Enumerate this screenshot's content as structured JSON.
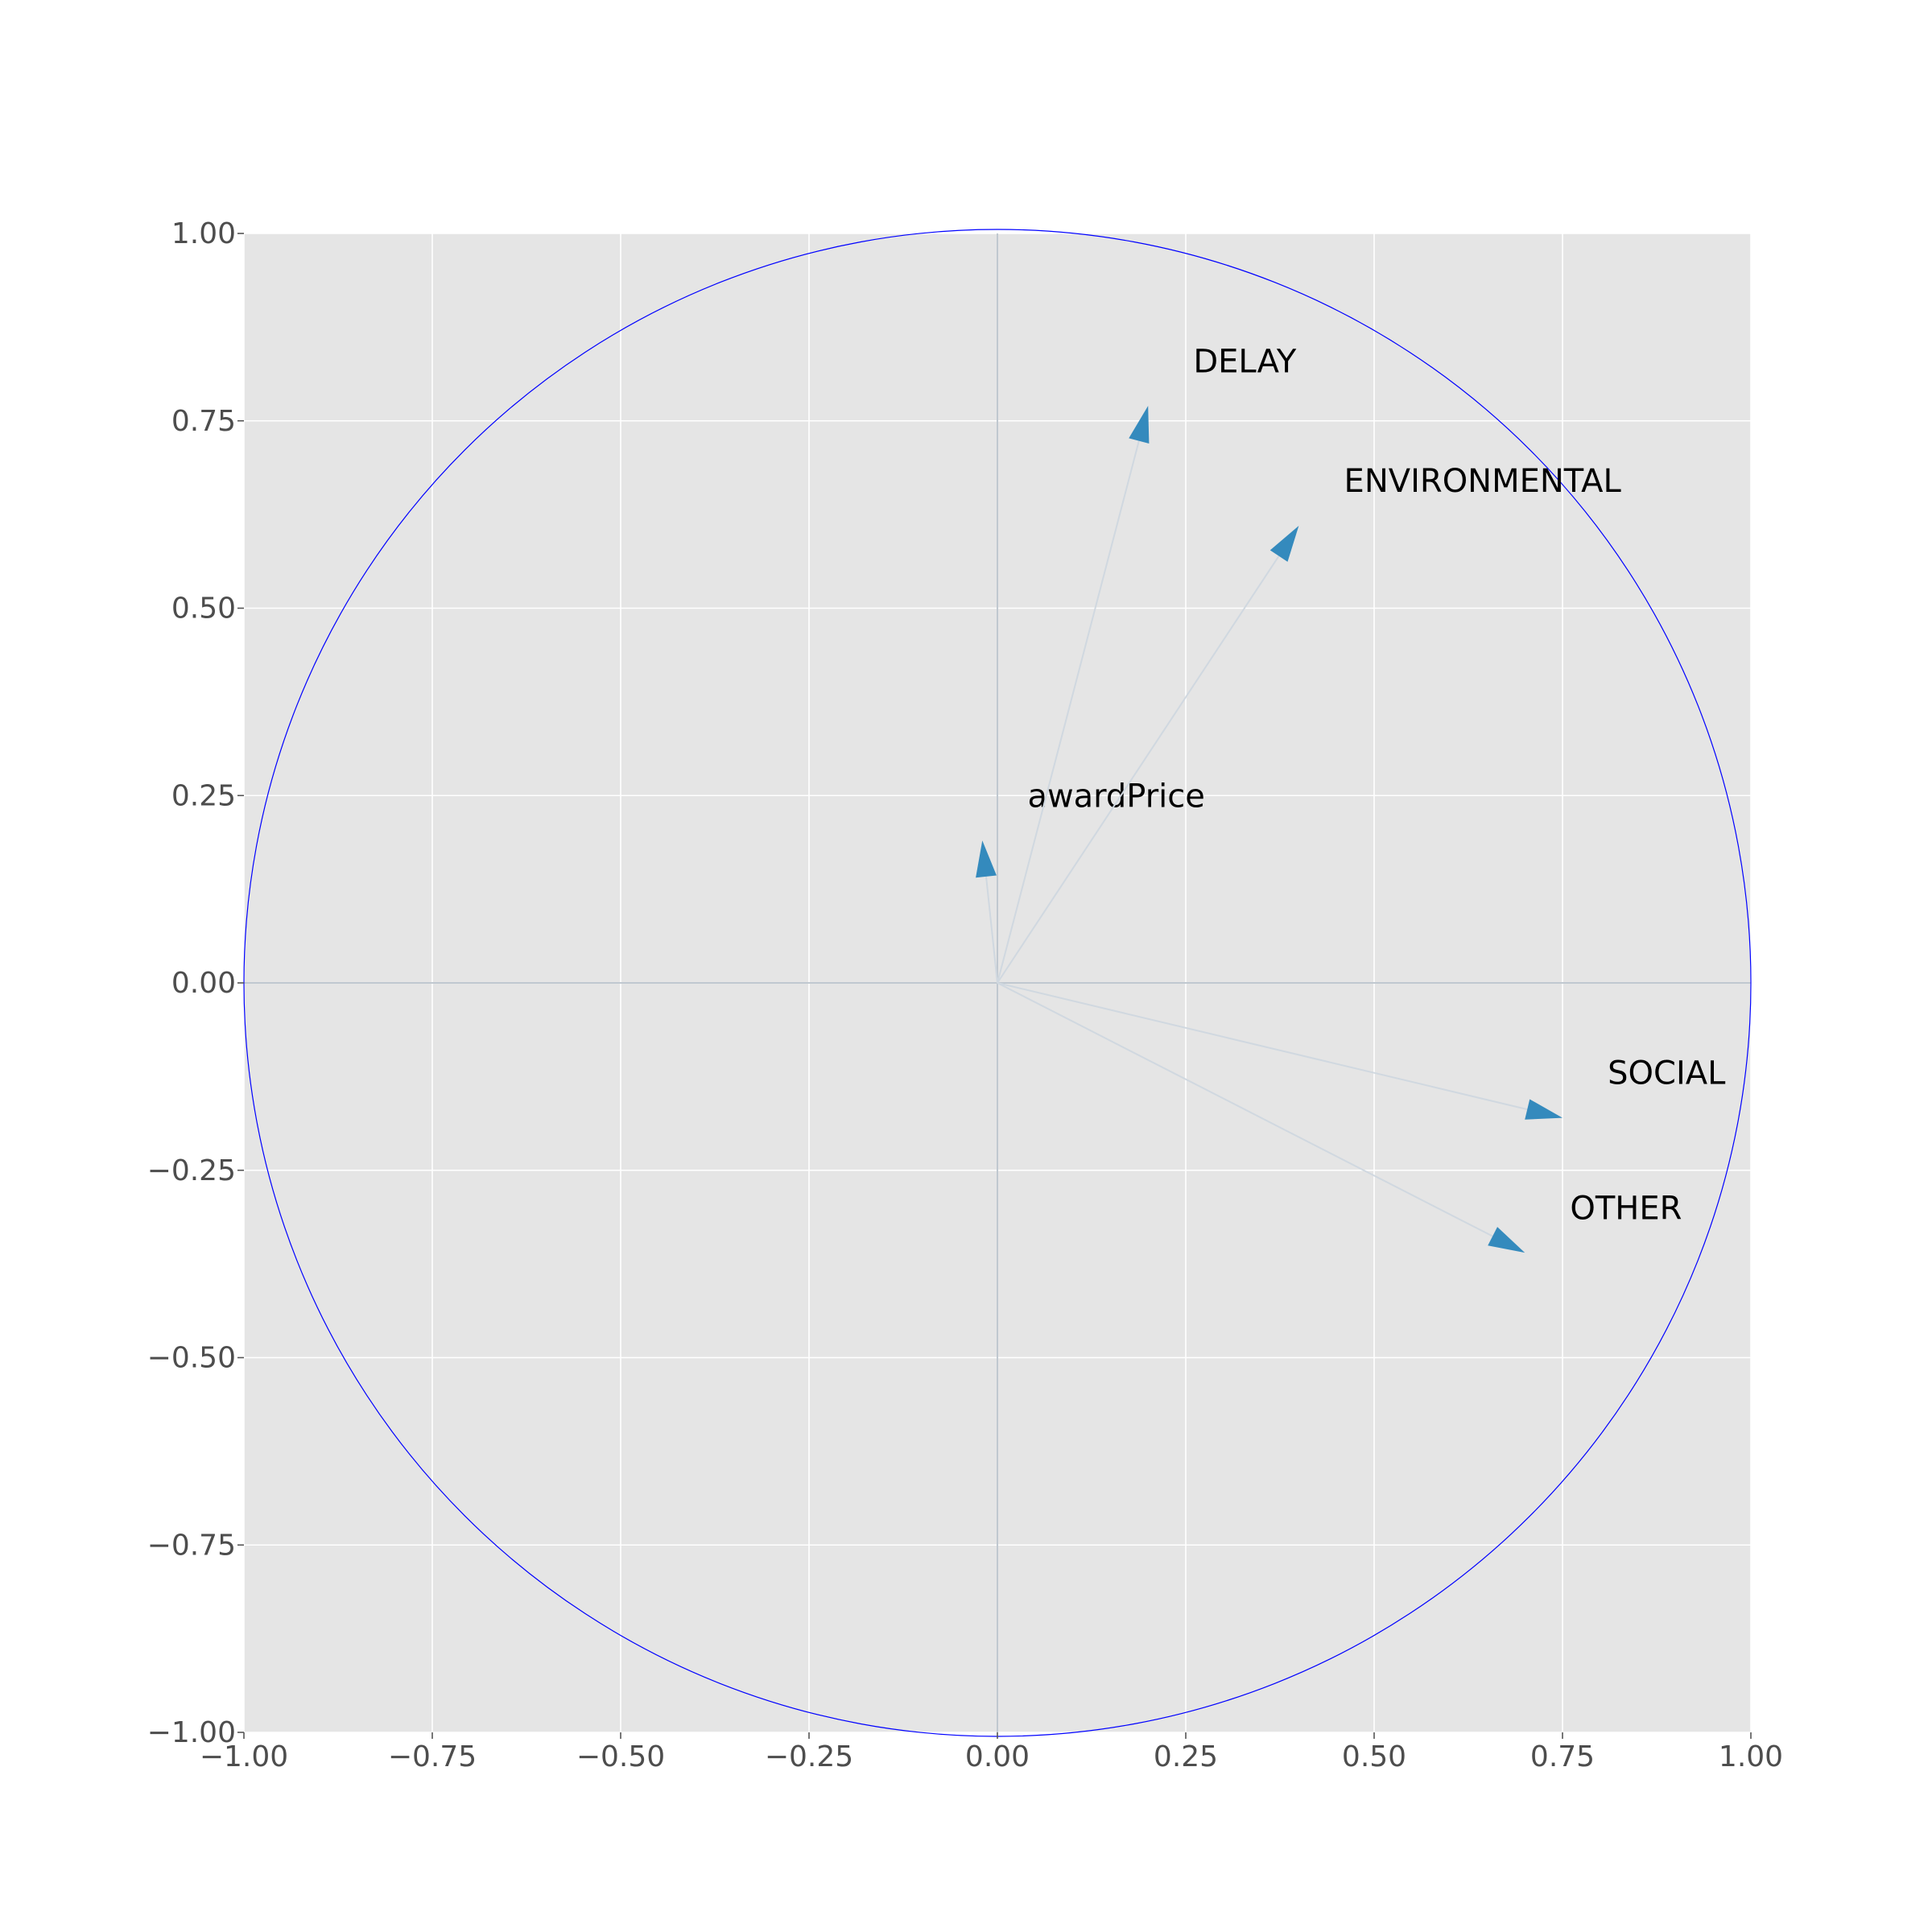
{
  "chart_data": {
    "type": "scatter",
    "subtype": "correlation-circle",
    "title": "",
    "xlabel": "",
    "ylabel": "",
    "xlim": [
      -1.0,
      1.0
    ],
    "ylim": [
      -1.0,
      1.0
    ],
    "x_ticks": [
      "−1.00",
      "−0.75",
      "−0.50",
      "−0.25",
      "0.00",
      "0.25",
      "0.50",
      "0.75",
      "1.00"
    ],
    "y_ticks": [
      "−1.00",
      "−0.75",
      "−0.50",
      "−0.25",
      "0.00",
      "0.25",
      "0.50",
      "0.75",
      "1.00"
    ],
    "grid": true,
    "unit_circle": true,
    "vectors": [
      {
        "label": "awardPrice",
        "x": -0.02,
        "y": 0.19
      },
      {
        "label": "DELAY",
        "x": 0.2,
        "y": 0.77
      },
      {
        "label": "ENVIRONMENTAL",
        "x": 0.4,
        "y": 0.61
      },
      {
        "label": "SOCIAL",
        "x": 0.75,
        "y": -0.18
      },
      {
        "label": "OTHER",
        "x": 0.7,
        "y": -0.36
      }
    ],
    "colors": {
      "background": "#e5e5e5",
      "grid": "#ffffff",
      "circle": "#0000ff",
      "arrow": "#348abd",
      "vector_line": "#d0d8e0",
      "axis_line": "#c0c8d0"
    }
  }
}
